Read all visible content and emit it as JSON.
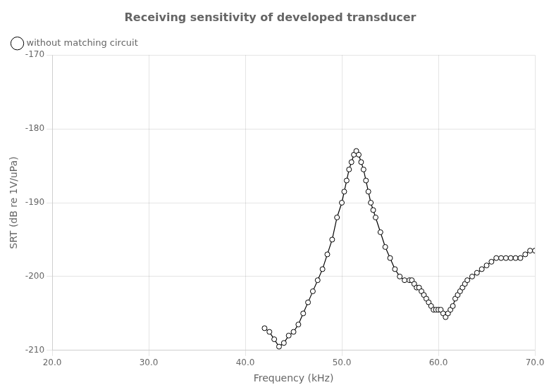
{
  "chart_data": {
    "type": "line",
    "title": "Receiving sensitivity of developed transducer",
    "xlabel": "Frequency (kHz)",
    "ylabel": "SRT (dB re 1V/uPa)",
    "x": [
      42.0,
      42.5,
      43.0,
      43.5,
      44.0,
      44.5,
      45.0,
      45.5,
      46.0,
      46.5,
      47.0,
      47.5,
      48.0,
      48.5,
      49.0,
      49.5,
      50.0,
      50.25,
      50.5,
      50.75,
      51.0,
      51.25,
      51.5,
      51.75,
      52.0,
      52.25,
      52.5,
      52.75,
      53.0,
      53.25,
      53.5,
      54.0,
      54.5,
      55.0,
      55.5,
      56.0,
      56.5,
      57.0,
      57.25,
      57.5,
      57.75,
      58.0,
      58.25,
      58.5,
      58.75,
      59.0,
      59.25,
      59.5,
      59.75,
      60.0,
      60.25,
      60.5,
      60.75,
      61.0,
      61.25,
      61.5,
      61.75,
      62.0,
      62.25,
      62.5,
      62.75,
      63.0,
      63.5,
      64.0,
      64.5,
      65.0,
      65.5,
      66.0,
      66.5,
      67.0,
      67.5,
      68.0,
      68.5,
      69.0,
      69.5,
      70.0
    ],
    "series": [
      {
        "name": "without matching circuit",
        "color": "#000000",
        "marker": "circle",
        "line_style": "solid",
        "values": [
          -207.0,
          -207.5,
          -208.5,
          -209.5,
          -209.0,
          -208.0,
          -207.5,
          -206.5,
          -205.0,
          -203.5,
          -202.0,
          -200.5,
          -199.0,
          -197.0,
          -195.0,
          -192.0,
          -190.0,
          -188.5,
          -187.0,
          -185.5,
          -184.5,
          -183.5,
          -183.0,
          -183.5,
          -184.5,
          -185.5,
          -187.0,
          -188.5,
          -190.0,
          -191.0,
          -192.0,
          -194.0,
          -196.0,
          -197.5,
          -199.0,
          -200.0,
          -200.5,
          -200.5,
          -200.5,
          -201.0,
          -201.5,
          -201.5,
          -202.0,
          -202.5,
          -203.0,
          -203.5,
          -204.0,
          -204.5,
          -204.5,
          -204.5,
          -204.5,
          -205.0,
          -205.5,
          -205.0,
          -204.5,
          -204.0,
          -203.0,
          -202.5,
          -202.0,
          -201.5,
          -201.0,
          -200.5,
          -200.0,
          -199.5,
          -199.0,
          -198.5,
          -198.0,
          -197.5,
          -197.5,
          -197.5,
          -197.5,
          -197.5,
          -197.5,
          -197.0,
          -196.5,
          -196.5
        ]
      }
    ],
    "xlim": [
      20.0,
      70.0
    ],
    "ylim": [
      -210,
      -170
    ],
    "xticks": [
      {
        "value": 20.0,
        "label": "20.0"
      },
      {
        "value": 30.0,
        "label": "30.0"
      },
      {
        "value": 40.0,
        "label": "40.0"
      },
      {
        "value": 50.0,
        "label": "50.0"
      },
      {
        "value": 60.0,
        "label": "60.0"
      },
      {
        "value": 70.0,
        "label": "70.0"
      }
    ],
    "yticks": [
      -210,
      -200,
      -190,
      -180,
      -170
    ],
    "grid": true,
    "legend": "upper left"
  }
}
